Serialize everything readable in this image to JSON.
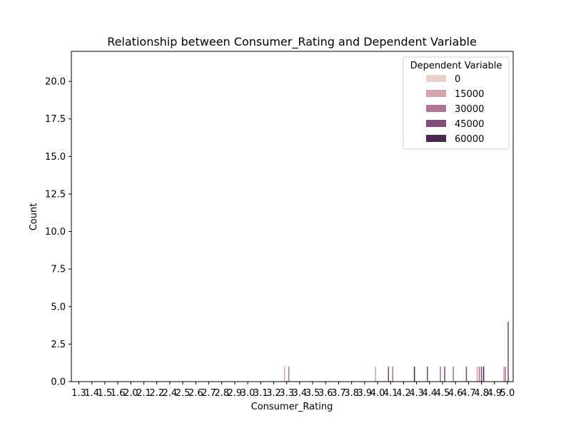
{
  "chart_data": {
    "type": "bar",
    "title": "Relationship between Consumer_Rating and Dependent Variable",
    "xlabel": "Consumer_Rating",
    "ylabel": "Count",
    "ylim": [
      0,
      22
    ],
    "yticks": [
      "0.0",
      "2.5",
      "5.0",
      "7.5",
      "10.0",
      "12.5",
      "15.0",
      "17.5",
      "20.0"
    ],
    "categories": [
      "1.3",
      "1.4",
      "1.5",
      "1.6",
      "2.0",
      "2.1",
      "2.2",
      "2.4",
      "2.5",
      "2.6",
      "2.7",
      "2.8",
      "2.9",
      "3.0",
      "3.1",
      "3.2",
      "3.3",
      "3.4",
      "3.5",
      "3.6",
      "3.7",
      "3.8",
      "3.9",
      "4.0",
      "4.1",
      "4.2",
      "4.3",
      "4.4",
      "4.5",
      "4.6",
      "4.7",
      "4.8",
      "4.9",
      "5.0"
    ],
    "grid": false,
    "legend": {
      "title": "Dependent Variable",
      "placement": "top-right",
      "entries": [
        {
          "label": "0",
          "color": "#ead0ca"
        },
        {
          "label": "15000",
          "color": "#d4a3ac"
        },
        {
          "label": "30000",
          "color": "#b07592"
        },
        {
          "label": "45000",
          "color": "#7f4f76"
        },
        {
          "label": "60000",
          "color": "#4b2a4f"
        }
      ]
    },
    "bars": [
      {
        "category": "3.3",
        "value": 1,
        "color": "#d4a3ac"
      },
      {
        "category": "3.3",
        "value": 1,
        "color": "#b07592"
      },
      {
        "category": "4.0",
        "value": 1,
        "color": "#d4a3ac"
      },
      {
        "category": "4.1",
        "value": 1,
        "color": "#7f4f76"
      },
      {
        "category": "4.1",
        "value": 1,
        "color": "#b07592"
      },
      {
        "category": "4.3",
        "value": 1,
        "color": "#4b2a4f"
      },
      {
        "category": "4.4",
        "value": 1,
        "color": "#7f4f76"
      },
      {
        "category": "4.5",
        "value": 1,
        "color": "#b07592"
      },
      {
        "category": "4.5",
        "value": 1,
        "color": "#7f4f76"
      },
      {
        "category": "4.6",
        "value": 1,
        "color": "#b07592"
      },
      {
        "category": "4.7",
        "value": 1,
        "color": "#7f4f76"
      },
      {
        "category": "4.8",
        "value": 1,
        "color": "#d4a3ac"
      },
      {
        "category": "4.8",
        "value": 1,
        "color": "#b07592"
      },
      {
        "category": "4.8",
        "value": 1,
        "color": "#7f4f76"
      },
      {
        "category": "4.8",
        "value": 1,
        "color": "#4b2a4f"
      },
      {
        "category": "5.0",
        "value": 1,
        "color": "#d4a3ac"
      },
      {
        "category": "5.0",
        "value": 1,
        "color": "#b07592"
      },
      {
        "category": "5.0",
        "value": 4,
        "color": "#7f4f76"
      }
    ]
  }
}
